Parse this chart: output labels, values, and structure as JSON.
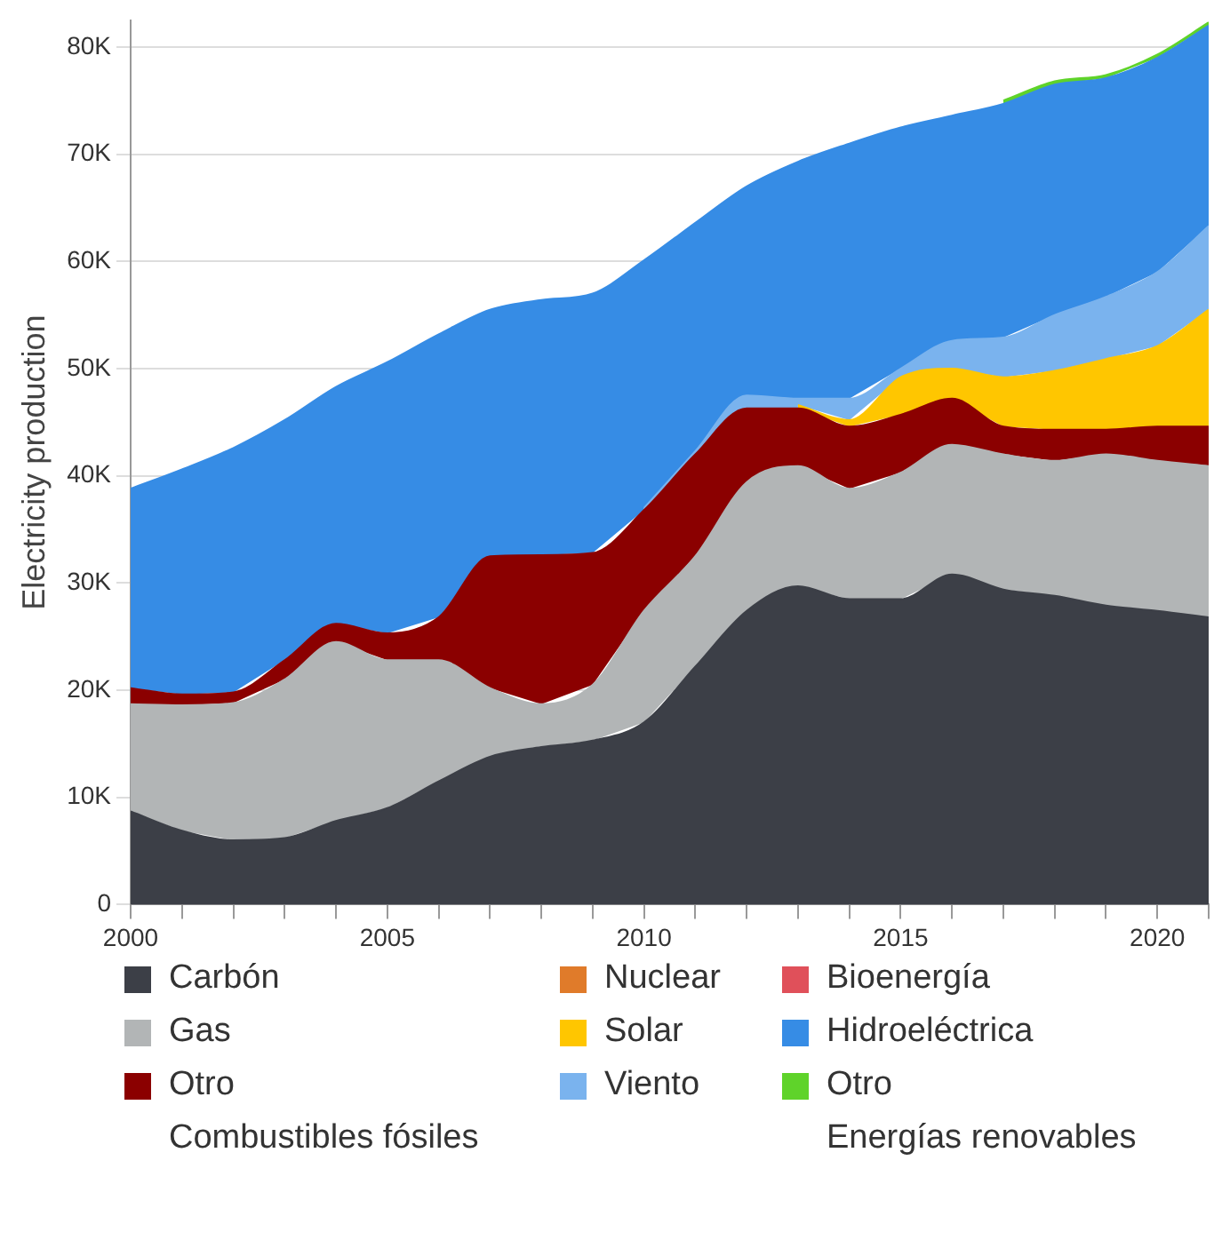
{
  "chart_data": {
    "type": "area",
    "ylabel": "Electricity production",
    "stacked": true,
    "grid": "y",
    "legend": "bottom",
    "marker": "none",
    "x": [
      2000,
      2001,
      2002,
      2003,
      2004,
      2005,
      2006,
      2007,
      2008,
      2009,
      2010,
      2011,
      2012,
      2013,
      2014,
      2015,
      2016,
      2017,
      2018,
      2019,
      2020,
      2021
    ],
    "xlim": [
      2000,
      2021
    ],
    "xticks": [
      2000,
      {
        "value": 2001,
        "label": null
      },
      {
        "value": 2002,
        "label": null
      },
      {
        "value": 2003,
        "label": null
      },
      {
        "value": 2004,
        "label": null
      },
      2005,
      {
        "value": 2006,
        "label": null
      },
      {
        "value": 2007,
        "label": null
      },
      {
        "value": 2008,
        "label": null
      },
      {
        "value": 2009,
        "label": null
      },
      2010,
      {
        "value": 2011,
        "label": null
      },
      {
        "value": 2012,
        "label": null
      },
      {
        "value": 2013,
        "label": null
      },
      {
        "value": 2014,
        "label": null
      },
      2015,
      {
        "value": 2016,
        "label": null
      },
      {
        "value": 2017,
        "label": null
      },
      {
        "value": 2018,
        "label": null
      },
      {
        "value": 2019,
        "label": null
      },
      2020,
      {
        "value": 2021,
        "label": null
      }
    ],
    "ylim": [
      0,
      82500
    ],
    "yticks": [
      0,
      {
        "value": 10000,
        "label": "10K"
      },
      {
        "value": 20000,
        "label": "20K"
      },
      {
        "value": 30000,
        "label": "30K"
      },
      {
        "value": 40000,
        "label": "40K"
      },
      {
        "value": 50000,
        "label": "50K"
      },
      {
        "value": 60000,
        "label": "60K"
      },
      {
        "value": 70000,
        "label": "70K"
      },
      {
        "value": 80000,
        "label": "80K"
      }
    ],
    "annotations": [
      "Combustibles fósiles",
      "Energías renovables"
    ],
    "series": [
      {
        "name": "Carbón",
        "color": "#3c3f47",
        "values": [
          8700,
          6900,
          6000,
          6200,
          7800,
          9000,
          11500,
          13800,
          14700,
          15300,
          17000,
          22200,
          27400,
          29700,
          28500,
          28500,
          30800,
          29400,
          28800,
          27900,
          27400,
          26800
        ]
      },
      {
        "name": "Gas",
        "color": "#b2b5b6",
        "values": [
          10000,
          11700,
          12800,
          14800,
          16700,
          13800,
          11300,
          6400,
          4000,
          5200,
          10400,
          10300,
          12000,
          11200,
          10300,
          11800,
          12100,
          12600,
          12600,
          14100,
          14000,
          14100
        ]
      },
      {
        "name": "Otro",
        "color": "#8b0000",
        "values": [
          1500,
          1000,
          1000,
          1800,
          1700,
          2500,
          4000,
          12300,
          13900,
          12300,
          9400,
          9500,
          6900,
          5400,
          5800,
          5400,
          4300,
          2600,
          2900,
          2300,
          3200,
          3700
        ]
      },
      {
        "name": "Nuclear",
        "color": "#e07b2a",
        "values": [
          null,
          null,
          null,
          null,
          null,
          null,
          null,
          null,
          null,
          null,
          null,
          null,
          null,
          null,
          null,
          null,
          null,
          null,
          null,
          null,
          null,
          null
        ]
      },
      {
        "name": "Bioenergía",
        "color": "#e0505a",
        "values": [
          null,
          null,
          null,
          null,
          null,
          null,
          null,
          null,
          null,
          null,
          null,
          null,
          null,
          null,
          null,
          null,
          null,
          null,
          null,
          null,
          null,
          null
        ]
      },
      {
        "name": "Solar",
        "color": "#ffc600",
        "values": [
          null,
          null,
          null,
          null,
          null,
          null,
          null,
          null,
          null,
          null,
          null,
          null,
          null,
          300,
          600,
          3500,
          2800,
          4600,
          5500,
          6600,
          7500,
          10900
        ]
      },
      {
        "name": "Viento",
        "color": "#7ab3ee",
        "values": [
          null,
          null,
          null,
          null,
          null,
          null,
          null,
          null,
          null,
          null,
          200,
          300,
          1200,
          600,
          2000,
          800,
          2600,
          3700,
          5200,
          5800,
          6900,
          7800
        ]
      },
      {
        "name": "Hidroeléctrica",
        "color": "#368ce5",
        "values": [
          18600,
          21000,
          22800,
          22400,
          22100,
          25300,
          26400,
          23000,
          23800,
          24200,
          23100,
          21300,
          19500,
          22100,
          23800,
          22500,
          21000,
          21800,
          21500,
          20400,
          20000,
          18700
        ]
      },
      {
        "name": "Otro",
        "color": "#5fd32a",
        "values": [
          null,
          null,
          null,
          null,
          null,
          null,
          null,
          null,
          null,
          null,
          null,
          null,
          null,
          null,
          null,
          null,
          null,
          300,
          300,
          300,
          300,
          300
        ]
      }
    ]
  }
}
